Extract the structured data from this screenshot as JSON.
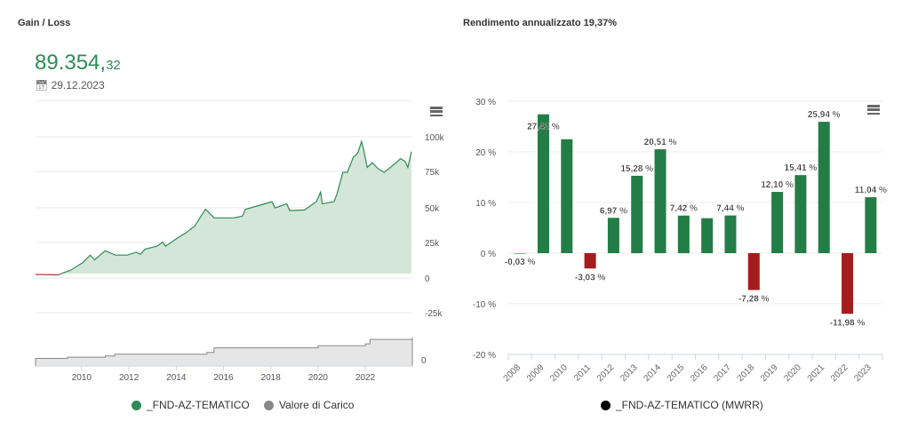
{
  "left": {
    "title": "Gain / Loss",
    "value_main": "89.354,",
    "value_decimals": "32",
    "date": "29.12.2023",
    "icons": {
      "date": "calendar-icon",
      "menu": "hamburger-menu-icon"
    }
  },
  "right": {
    "title": "Rendimento annualizzato 19,37%",
    "icons": {
      "menu": "hamburger-menu-icon"
    }
  },
  "colors": {
    "gain": "#2e8b57",
    "loss": "#c0392b",
    "bar_positive": "#237d46",
    "bar_negative": "#a51c1c",
    "carico": "#888888"
  },
  "chart_data": [
    {
      "type": "area",
      "xlabel": "",
      "ylabel": "",
      "xlim": [
        2008.05,
        2023.99
      ],
      "ylim": [
        -25000,
        100000
      ],
      "x_ticks": [
        "2010",
        "2012",
        "2014",
        "2016",
        "2018",
        "2020",
        "2022"
      ],
      "y_ticks": [
        "100k",
        "75k",
        "50k",
        "25k",
        "0",
        "-25k"
      ],
      "grid": true,
      "legend_position": "bottom",
      "series": [
        {
          "name": "_FND-AZ-TEMATICO",
          "color": "#2e8b57",
          "points": [
            [
              2008.05,
              -700
            ],
            [
              2008.99,
              -1000
            ],
            [
              2009.55,
              2600
            ],
            [
              2010.05,
              8000
            ],
            [
              2010.36,
              13500
            ],
            [
              2010.55,
              10000
            ],
            [
              2010.99,
              16700
            ],
            [
              2011.43,
              13500
            ],
            [
              2011.93,
              13500
            ],
            [
              2012.3,
              15600
            ],
            [
              2012.49,
              14000
            ],
            [
              2012.68,
              17800
            ],
            [
              2013.18,
              20000
            ],
            [
              2013.43,
              23000
            ],
            [
              2013.55,
              20000
            ],
            [
              2014.05,
              26000
            ],
            [
              2014.43,
              30000
            ],
            [
              2014.8,
              35000
            ],
            [
              2015.05,
              42000
            ],
            [
              2015.24,
              47000
            ],
            [
              2015.61,
              40700
            ],
            [
              2016.43,
              40700
            ],
            [
              2016.8,
              42000
            ],
            [
              2016.93,
              47000
            ],
            [
              2017.55,
              50000
            ],
            [
              2018.05,
              52600
            ],
            [
              2018.18,
              48000
            ],
            [
              2018.68,
              51000
            ],
            [
              2018.8,
              46000
            ],
            [
              2019.43,
              46500
            ],
            [
              2019.93,
              52600
            ],
            [
              2020.11,
              59600
            ],
            [
              2020.18,
              51000
            ],
            [
              2020.68,
              52600
            ],
            [
              2020.8,
              58000
            ],
            [
              2021.05,
              74000
            ],
            [
              2021.24,
              74000
            ],
            [
              2021.49,
              85000
            ],
            [
              2021.68,
              88000
            ],
            [
              2021.84,
              96500
            ],
            [
              2021.93,
              90600
            ],
            [
              2022.08,
              77600
            ],
            [
              2022.3,
              81000
            ],
            [
              2022.55,
              76500
            ],
            [
              2022.8,
              74000
            ],
            [
              2023.3,
              81000
            ],
            [
              2023.49,
              84000
            ],
            [
              2023.68,
              82000
            ],
            [
              2023.8,
              77600
            ],
            [
              2023.95,
              89100
            ]
          ]
        },
        {
          "name": "Valore di Carico",
          "color": "#888888",
          "points": [
            [
              2008.05,
              25
            ],
            [
              2009.4,
              29
            ],
            [
              2011.0,
              33
            ],
            [
              2011.4,
              39
            ],
            [
              2015.3,
              45
            ],
            [
              2015.6,
              60
            ],
            [
              2020.0,
              67
            ],
            [
              2022.0,
              73
            ],
            [
              2022.2,
              88
            ],
            [
              2023.99,
              95
            ]
          ]
        }
      ],
      "navigator_y_tick": "0"
    },
    {
      "type": "bar",
      "categories": [
        "2008",
        "2009",
        "2010",
        "2011",
        "2012",
        "2013",
        "2014",
        "2015",
        "2016",
        "2017",
        "2018",
        "2019",
        "2020",
        "2021",
        "2022",
        "2023"
      ],
      "values": [
        -0.03,
        27.42,
        22.5,
        -3.03,
        6.97,
        15.28,
        20.51,
        7.42,
        6.9,
        7.44,
        -7.28,
        12.1,
        15.41,
        25.94,
        -11.98,
        11.04
      ],
      "data_labels": [
        "-0,03 %",
        "27,42 %",
        "",
        "-3,03 %",
        "6,97 %",
        "15,28 %",
        "20,51 %",
        "7,42 %",
        "",
        "7,44 %",
        "-7,28 %",
        "12,10 %",
        "15,41 %",
        "25,94 %",
        "-11,98 %",
        "11,04 %"
      ],
      "ylim": [
        -20,
        30
      ],
      "y_ticks": [
        "30 %",
        "20 %",
        "10 %",
        "0 %",
        "-10 %",
        "-20 %"
      ],
      "y_tick_values": [
        30,
        20,
        10,
        0,
        -10,
        -20
      ],
      "grid": true,
      "legend_position": "bottom",
      "series": [
        {
          "name": "_FND-AZ-TEMATICO (MWRR)"
        }
      ]
    }
  ]
}
